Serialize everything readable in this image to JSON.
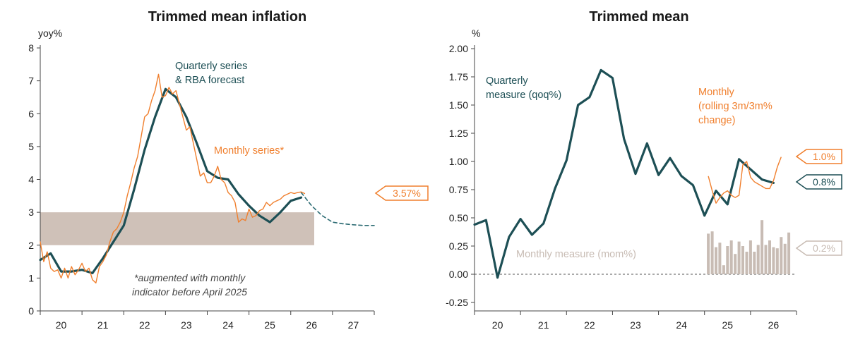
{
  "colors": {
    "quarterly": "#1d4f55",
    "monthly": "#f07f2d",
    "target_band": "#cfc1b8",
    "mom_bars": "#c8bcb4",
    "forecast": "#2a6a72",
    "axis": "#444444"
  },
  "chart_data": [
    {
      "type": "line",
      "title": "Trimmed mean inflation",
      "ylabel": "yoy%",
      "xlabel": "",
      "ylim": [
        0,
        8
      ],
      "yticks": [
        "0",
        "1",
        "2",
        "3",
        "4",
        "5",
        "6",
        "7",
        "8"
      ],
      "xlim": [
        19.5,
        27.5
      ],
      "x_tick_labels": [
        "20",
        "21",
        "22",
        "23",
        "24",
        "25",
        "26",
        "27"
      ],
      "target_band": [
        2,
        3
      ],
      "annotations": {
        "quarterly_label": [
          "Quarterly series",
          "& RBA forecast"
        ],
        "monthly_label": "Monthly series*",
        "footnote": [
          "*augmented with monthly",
          "indicator before April 2025"
        ]
      },
      "callout": {
        "label": "3.57%",
        "value": 3.57,
        "series": "Monthly series*"
      },
      "series": [
        {
          "name": "Quarterly series",
          "style": "quarterly",
          "x": [
            19.5,
            19.75,
            20.0,
            20.25,
            20.5,
            20.75,
            21.0,
            21.25,
            21.5,
            21.75,
            22.0,
            22.25,
            22.5,
            22.75,
            23.0,
            23.25,
            23.5,
            23.75,
            24.0,
            24.25,
            24.5,
            24.75,
            25.0,
            25.25,
            25.5,
            25.75
          ],
          "y": [
            1.55,
            1.75,
            1.2,
            1.2,
            1.25,
            1.15,
            1.6,
            2.1,
            2.6,
            3.7,
            4.9,
            5.9,
            6.75,
            6.5,
            5.9,
            5.1,
            4.25,
            4.05,
            4.0,
            3.55,
            3.2,
            2.9,
            2.7,
            3.0,
            3.35,
            3.45
          ]
        },
        {
          "name": "RBA forecast",
          "style": "forecast",
          "x": [
            25.75,
            26.0,
            26.25,
            26.5,
            26.75,
            27.0,
            27.25,
            27.5
          ],
          "y": [
            3.6,
            3.2,
            2.9,
            2.7,
            2.65,
            2.62,
            2.6,
            2.6
          ]
        },
        {
          "name": "Monthly series*",
          "style": "monthly",
          "x": [
            19.5,
            19.583,
            19.667,
            19.75,
            19.833,
            19.917,
            20.0,
            20.083,
            20.167,
            20.25,
            20.333,
            20.417,
            20.5,
            20.583,
            20.667,
            20.75,
            20.833,
            20.917,
            21.0,
            21.083,
            21.167,
            21.25,
            21.333,
            21.417,
            21.5,
            21.583,
            21.667,
            21.75,
            21.833,
            21.917,
            22.0,
            22.083,
            22.167,
            22.25,
            22.333,
            22.417,
            22.5,
            22.583,
            22.667,
            22.75,
            22.833,
            22.917,
            23.0,
            23.083,
            23.167,
            23.25,
            23.333,
            23.417,
            23.5,
            23.583,
            23.667,
            23.75,
            23.833,
            23.917,
            24.0,
            24.083,
            24.167,
            24.25,
            24.333,
            24.417,
            24.5,
            24.583,
            24.667,
            24.75,
            24.833,
            24.917,
            25.0,
            25.083,
            25.167,
            25.25,
            25.333,
            25.417,
            25.5,
            25.583,
            25.667,
            25.75,
            25.833
          ],
          "y": [
            2.1,
            1.5,
            1.8,
            1.3,
            1.2,
            1.25,
            1.0,
            1.3,
            1.0,
            1.35,
            1.1,
            1.25,
            1.45,
            1.2,
            1.3,
            0.95,
            0.85,
            1.35,
            1.5,
            1.7,
            2.1,
            2.4,
            2.5,
            2.7,
            3.0,
            3.5,
            3.9,
            4.35,
            4.7,
            5.3,
            5.9,
            6.0,
            6.4,
            6.7,
            7.2,
            6.5,
            6.55,
            6.8,
            6.6,
            6.7,
            6.3,
            5.9,
            5.5,
            5.6,
            5.1,
            4.6,
            4.1,
            4.2,
            3.9,
            3.9,
            4.1,
            4.4,
            4.0,
            3.9,
            3.6,
            3.5,
            3.3,
            2.7,
            2.8,
            2.75,
            3.1,
            2.85,
            2.9,
            3.05,
            3.1,
            3.3,
            3.2,
            3.3,
            3.35,
            3.4,
            3.5,
            3.55,
            3.6,
            3.57,
            3.6,
            3.62,
            3.57
          ]
        }
      ]
    },
    {
      "type": "line",
      "title": "Trimmed mean",
      "ylabel": "%",
      "xlabel": "",
      "ylim": [
        -0.3,
        2.05
      ],
      "yticks": [
        -0.25,
        0.0,
        0.25,
        0.5,
        0.75,
        1.0,
        1.25,
        1.5,
        1.75,
        2.0
      ],
      "ytick_labels": [
        "-0.25",
        "0.00",
        "0.25",
        "0.50",
        "0.75",
        "1.00",
        "1.25",
        "1.50",
        "1.75",
        "2.00"
      ],
      "xlim": [
        19.5,
        26.5
      ],
      "x_tick_labels": [
        "20",
        "21",
        "22",
        "23",
        "24",
        "25",
        "26"
      ],
      "annotations": {
        "quarterly_label": [
          "Quarterly",
          "measure (qoq%)"
        ],
        "monthly_label": [
          "Monthly",
          "(rolling 3m/3m%",
          "change)"
        ],
        "mom_label": "Monthly measure (mom%)"
      },
      "callouts": [
        {
          "label": "1.0%",
          "value": 1.04,
          "series": "Monthly (rolling 3m/3m% change)"
        },
        {
          "label": "0.8%",
          "value": 0.81,
          "series": "Quarterly measure (qoq%)"
        },
        {
          "label": "0.2%",
          "value": 0.23,
          "series": "Monthly measure (mom%)"
        }
      ],
      "series": [
        {
          "name": "Quarterly measure (qoq%)",
          "style": "quarterly",
          "x": [
            19.5,
            19.75,
            20.0,
            20.25,
            20.5,
            20.75,
            21.0,
            21.25,
            21.5,
            21.75,
            22.0,
            22.25,
            22.5,
            22.75,
            23.0,
            23.25,
            23.5,
            23.75,
            24.0,
            24.25,
            24.5,
            24.75,
            25.0,
            25.25,
            25.5,
            25.75,
            26.0
          ],
          "y": [
            0.44,
            0.48,
            -0.03,
            0.33,
            0.49,
            0.35,
            0.45,
            0.76,
            1.01,
            1.5,
            1.57,
            1.81,
            1.74,
            1.2,
            0.89,
            1.16,
            0.88,
            1.03,
            0.87,
            0.79,
            0.52,
            0.74,
            0.62,
            1.02,
            0.93,
            0.84,
            0.81
          ]
        },
        {
          "name": "Monthly (rolling 3m/3m% change)",
          "style": "monthly",
          "x": [
            24.583,
            24.667,
            24.75,
            24.833,
            24.917,
            25.0,
            25.083,
            25.167,
            25.25,
            25.333,
            25.417,
            25.5,
            25.583,
            25.667,
            25.75,
            25.833,
            25.917,
            26.0,
            26.083,
            26.167
          ],
          "y": [
            0.87,
            0.74,
            0.63,
            0.68,
            0.72,
            0.74,
            0.7,
            0.68,
            0.7,
            0.97,
            1.0,
            0.86,
            0.82,
            0.8,
            0.78,
            0.76,
            0.76,
            0.83,
            0.95,
            1.04
          ]
        },
        {
          "name": "Monthly measure (mom%)",
          "style": "bars",
          "x": [
            24.583,
            24.667,
            24.75,
            24.833,
            24.917,
            25.0,
            25.083,
            25.167,
            25.25,
            25.333,
            25.417,
            25.5,
            25.583,
            25.667,
            25.75,
            25.833,
            25.917,
            26.0,
            26.083,
            26.167,
            26.25,
            26.333
          ],
          "y": [
            0.36,
            0.38,
            0.24,
            0.28,
            0.08,
            0.25,
            0.3,
            0.18,
            0.29,
            0.25,
            0.2,
            0.3,
            0.2,
            0.26,
            0.48,
            0.26,
            0.3,
            0.24,
            0.23,
            0.33,
            0.27,
            0.37
          ]
        }
      ]
    }
  ]
}
